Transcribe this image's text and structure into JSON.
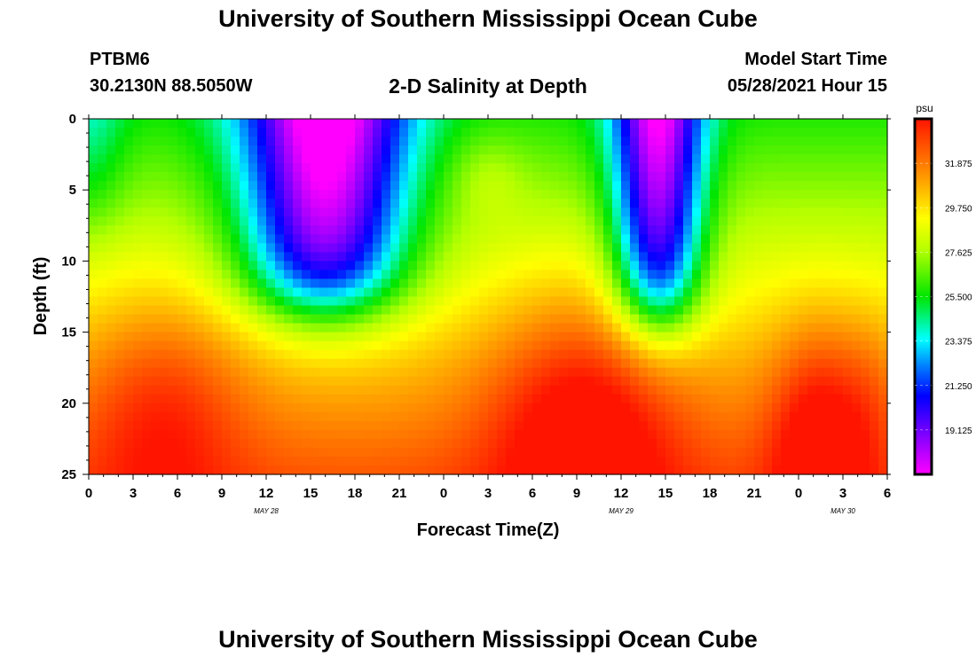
{
  "header": {
    "title": "University of Southern Mississippi Ocean Cube",
    "station_id": "PTBM6",
    "coords": "30.2130N  88.5050W",
    "model_start_label": "Model Start Time",
    "model_start_value": "05/28/2021 Hour 15"
  },
  "footer": {
    "title": "University of Southern Mississippi Ocean Cube"
  },
  "chart_data": {
    "type": "heatmap",
    "title": "2-D Salinity at Depth",
    "xlabel": "Forecast Time(Z)",
    "ylabel": "Depth (ft)",
    "x_hours": [
      0,
      54
    ],
    "x_tick_labels": [
      "0",
      "3",
      "6",
      "9",
      "12",
      "15",
      "18",
      "21",
      "0",
      "3",
      "6",
      "9",
      "12",
      "15",
      "18",
      "21",
      "0",
      "3",
      "6"
    ],
    "date_labels": [
      {
        "text": "MAY 28",
        "hour": 12
      },
      {
        "text": "MAY 29",
        "hour": 36
      },
      {
        "text": "MAY 30",
        "hour": 51
      }
    ],
    "y_ticks": [
      0,
      5,
      10,
      15,
      20,
      25
    ],
    "ylim": [
      0,
      25
    ],
    "colorbar": {
      "unit": "psu",
      "range": [
        17.0,
        34.0
      ],
      "tick_values": [
        19.125,
        21.25,
        23.375,
        25.5,
        27.625,
        29.75,
        31.875
      ],
      "tick_labels": [
        "19.125",
        "21.250",
        "23.375",
        "25.500",
        "27.625",
        "29.750",
        "31.875"
      ]
    },
    "field": {
      "description": "Salinity (psu) at depth vs forecast hour; values reconstructed from color",
      "fresh_lenses": [
        {
          "center_hour": 16,
          "width_hours": 5.5,
          "bottom_depth_ft": 16
        },
        {
          "center_hour": 38.5,
          "width_hours": 3.0,
          "bottom_depth_ft": 18
        }
      ],
      "dominant_range_psu": [
        17.5,
        33.5
      ]
    }
  }
}
